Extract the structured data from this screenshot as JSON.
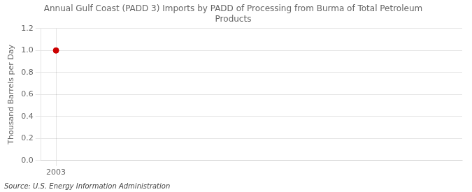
{
  "chart_data": {
    "type": "scatter",
    "title": [
      "Annual Gulf Coast (PADD 3) Imports by PADD of Processing from Burma of Total Petroleum",
      "Products"
    ],
    "y_label": "Thousand Barrels per Day",
    "source": "Source: U.S. Energy Information Administration",
    "x": [
      2003
    ],
    "values": [
      1.0
    ],
    "color": "#cc0000",
    "marker": "circle",
    "xlim": [
      2002.3,
      2022
    ],
    "xticks": [
      2003
    ],
    "ylim": [
      0.0,
      1.2
    ],
    "yticks": [
      {
        "value": 0.0,
        "label": "0.0"
      },
      0.2,
      0.4,
      0.6,
      0.8,
      {
        "value": 1.0,
        "label": "1.0"
      },
      1.2
    ],
    "grid": true
  }
}
